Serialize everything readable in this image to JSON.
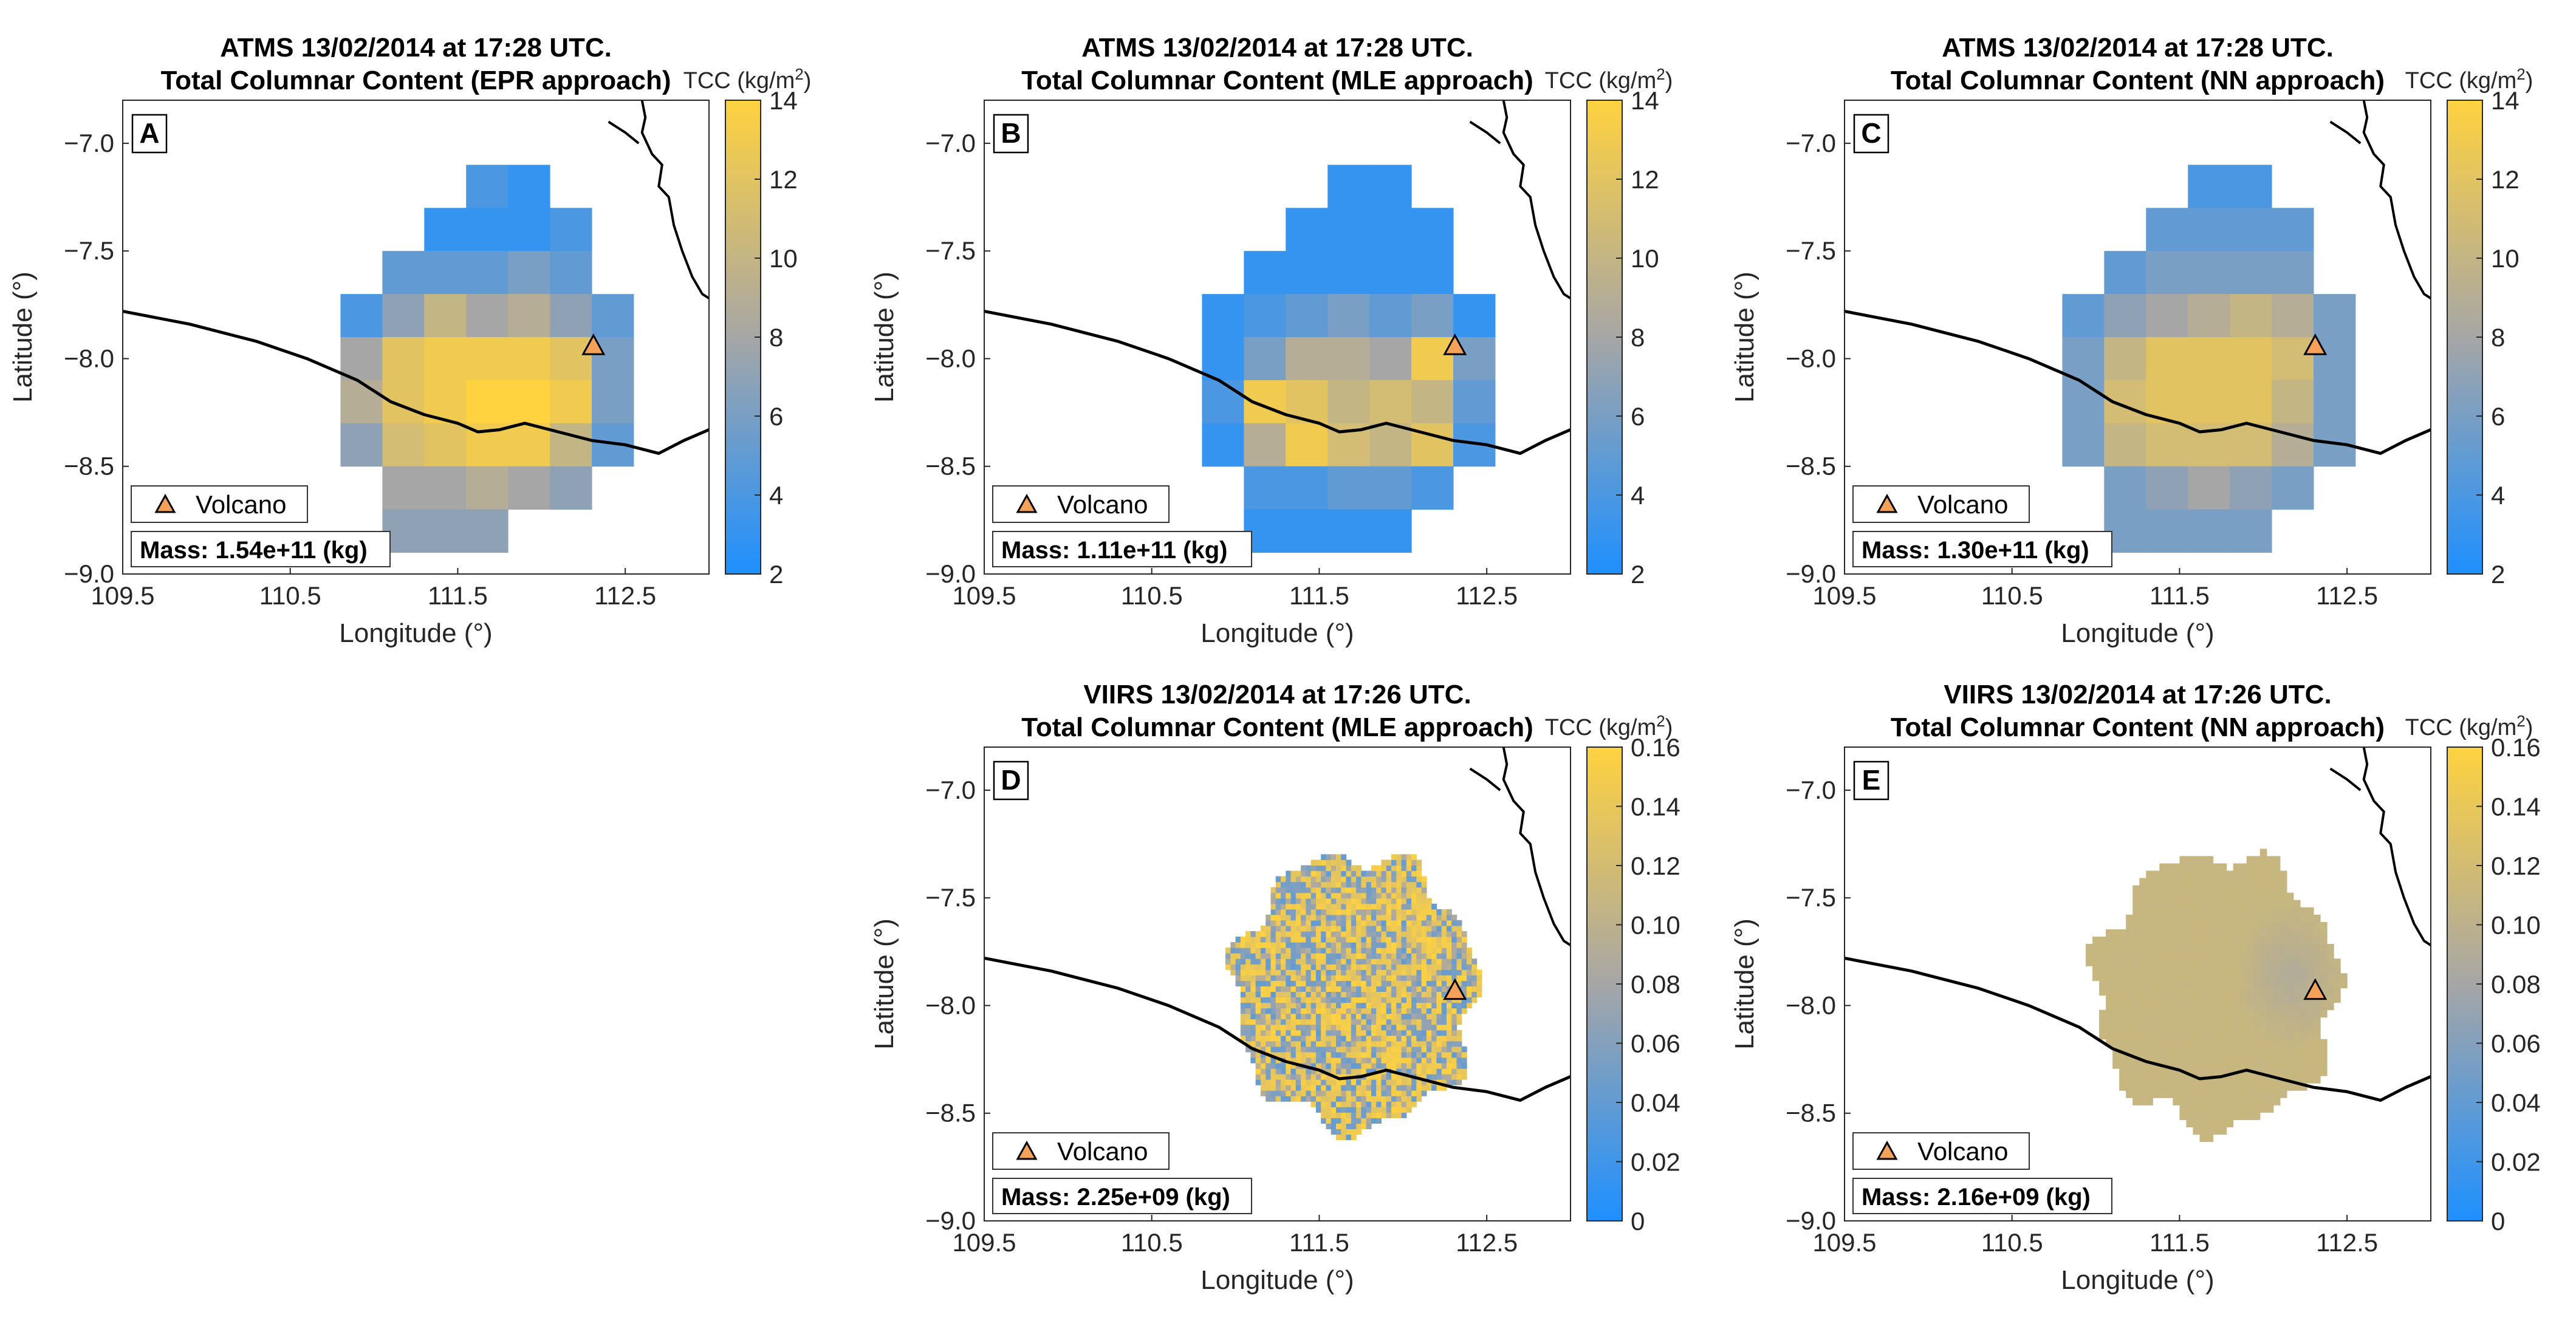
{
  "colors": {
    "low": "#1E90FF",
    "mid": "#A6A6A6",
    "high": "#FFD23F",
    "coast": "#000000",
    "volcano_fill": "#F4A259"
  },
  "chart_data": [
    {
      "type": "heatmap",
      "panel": "A",
      "instrument": "ATMS",
      "title": "ATMS 13/02/2014 at 17:28 UTC.",
      "subtitle": "Total Columnar Content (EPR approach)",
      "xlabel": "Longitude (°)",
      "ylabel": "Latitude (°)",
      "xlim": [
        109.5,
        113.0
      ],
      "ylim": [
        -9.0,
        -6.8
      ],
      "xticks": [
        "109.5",
        "110.5",
        "111.5",
        "112.5"
      ],
      "yticks": [
        "-9.0",
        "-8.5",
        "-8.0",
        "-7.5",
        "-7.0"
      ],
      "colorbar": {
        "label": "TCC",
        "unit": "(kg/m",
        "unit_sup": "2",
        "unit_end": ")",
        "min": 2,
        "max": 14,
        "ticks": [
          "2",
          "4",
          "6",
          "8",
          "10",
          "12",
          "14"
        ]
      },
      "legend": "Volcano",
      "mass": "Mass: 1.54e+11 (kg)",
      "volcano": [
        112.31,
        -7.94
      ],
      "field": "pixel",
      "values": [
        [
          null,
          null,
          null,
          4,
          3,
          null,
          null
        ],
        [
          null,
          null,
          3,
          3,
          3,
          4,
          null
        ],
        [
          null,
          5,
          5,
          5,
          6,
          5,
          null
        ],
        [
          4,
          7,
          10,
          8,
          9,
          7,
          5
        ],
        [
          8,
          12,
          13,
          13,
          13,
          12,
          6
        ],
        [
          9,
          12,
          13,
          14,
          14,
          13,
          6
        ],
        [
          7,
          11,
          12,
          13,
          13,
          10,
          5
        ],
        [
          null,
          8,
          8,
          9,
          8,
          7,
          null
        ],
        [
          null,
          7,
          7,
          7,
          null,
          null,
          null
        ]
      ]
    },
    {
      "type": "heatmap",
      "panel": "B",
      "instrument": "ATMS",
      "title": "ATMS 13/02/2014 at 17:28 UTC.",
      "subtitle": "Total Columnar Content (MLE approach)",
      "xlabel": "Longitude (°)",
      "ylabel": "Latitude (°)",
      "xlim": [
        109.5,
        113.0
      ],
      "ylim": [
        -9.0,
        -6.8
      ],
      "xticks": [
        "109.5",
        "110.5",
        "111.5",
        "112.5"
      ],
      "yticks": [
        "-9.0",
        "-8.5",
        "-8.0",
        "-7.5",
        "-7.0"
      ],
      "colorbar": {
        "label": "TCC",
        "unit": "(kg/m",
        "unit_sup": "2",
        "unit_end": ")",
        "min": 2,
        "max": 14,
        "ticks": [
          "2",
          "4",
          "6",
          "8",
          "10",
          "12",
          "14"
        ]
      },
      "legend": "Volcano",
      "mass": "Mass: 1.11e+11 (kg)",
      "volcano": [
        112.31,
        -7.94
      ],
      "field": "pixel",
      "values": [
        [
          null,
          null,
          null,
          3,
          3,
          null,
          null
        ],
        [
          null,
          null,
          3,
          3,
          3,
          3,
          null
        ],
        [
          null,
          3,
          3,
          3,
          3,
          3,
          null
        ],
        [
          3,
          4,
          5,
          6,
          5,
          6,
          3
        ],
        [
          3,
          6,
          9,
          9,
          8,
          13,
          6
        ],
        [
          4,
          13,
          12,
          10,
          11,
          10,
          5
        ],
        [
          3,
          9,
          13,
          11,
          10,
          12,
          4
        ],
        [
          null,
          4,
          4,
          5,
          5,
          4,
          null
        ],
        [
          null,
          3,
          3,
          3,
          3,
          null,
          null
        ]
      ]
    },
    {
      "type": "heatmap",
      "panel": "C",
      "instrument": "ATMS",
      "title": "ATMS 13/02/2014 at 17:28 UTC.",
      "subtitle": "Total Columnar Content (NN approach)",
      "xlabel": "Longitude (°)",
      "ylabel": "Latitude (°)",
      "xlim": [
        109.5,
        113.0
      ],
      "ylim": [
        -9.0,
        -6.8
      ],
      "xticks": [
        "109.5",
        "110.5",
        "111.5",
        "112.5"
      ],
      "yticks": [
        "-9.0",
        "-8.5",
        "-8.0",
        "-7.5",
        "-7.0"
      ],
      "colorbar": {
        "label": "TCC",
        "unit": "(kg/m",
        "unit_sup": "2",
        "unit_end": ")",
        "min": 2,
        "max": 14,
        "ticks": [
          "2",
          "4",
          "6",
          "8",
          "10",
          "12",
          "14"
        ]
      },
      "legend": "Volcano",
      "mass": "Mass: 1.30e+11 (kg)",
      "volcano": [
        112.31,
        -7.94
      ],
      "field": "pixel",
      "values": [
        [
          null,
          null,
          null,
          4,
          4,
          null,
          null
        ],
        [
          null,
          null,
          5,
          5,
          5,
          5,
          null
        ],
        [
          null,
          5,
          6,
          6,
          6,
          6,
          null
        ],
        [
          5,
          7,
          8,
          9,
          10,
          9,
          6
        ],
        [
          6,
          10,
          12,
          12,
          12,
          11,
          6
        ],
        [
          6,
          11,
          12,
          12,
          12,
          10,
          6
        ],
        [
          6,
          10,
          11,
          11,
          11,
          9,
          6
        ],
        [
          null,
          6,
          7,
          8,
          7,
          6,
          null
        ],
        [
          null,
          6,
          6,
          6,
          6,
          null,
          null
        ]
      ]
    },
    {
      "type": "heatmap",
      "panel": "D",
      "instrument": "VIIRS",
      "title": "VIIRS 13/02/2014 at 17:26 UTC.",
      "subtitle": "Total Columnar Content (MLE approach)",
      "xlabel": "Longitude (°)",
      "ylabel": "Latitude (°)",
      "xlim": [
        109.5,
        113.0
      ],
      "ylim": [
        -9.0,
        -6.8
      ],
      "xticks": [
        "109.5",
        "110.5",
        "111.5",
        "112.5"
      ],
      "yticks": [
        "-9.0",
        "-8.5",
        "-8.0",
        "-7.5",
        "-7.0"
      ],
      "colorbar": {
        "label": "TCC",
        "unit": "(kg/m",
        "unit_sup": "2",
        "unit_end": ")",
        "min": 0,
        "max": 0.16,
        "ticks": [
          "0",
          "0.02",
          "0.04",
          "0.06",
          "0.08",
          "0.10",
          "0.12",
          "0.14",
          "0.16"
        ]
      },
      "legend": "Volcano",
      "mass": "Mass: 2.25e+09 (kg)",
      "volcano": [
        112.31,
        -7.93
      ],
      "field": "noisy",
      "value_range": [
        0.04,
        0.16
      ]
    },
    {
      "type": "heatmap",
      "panel": "E",
      "instrument": "VIIRS",
      "title": "VIIRS 13/02/2014 at 17:26 UTC.",
      "subtitle": "Total Columnar Content (NN approach)",
      "xlabel": "Longitude (°)",
      "ylabel": "Latitude (°)",
      "xlim": [
        109.5,
        113.0
      ],
      "ylim": [
        -9.0,
        -6.8
      ],
      "xticks": [
        "109.5",
        "110.5",
        "111.5",
        "112.5"
      ],
      "yticks": [
        "-9.0",
        "-8.5",
        "-8.0",
        "-7.5",
        "-7.0"
      ],
      "colorbar": {
        "label": "TCC",
        "unit": "(kg/m",
        "unit_sup": "2",
        "unit_end": ")",
        "min": 0,
        "max": 0.16,
        "ticks": [
          "0",
          "0.02",
          "0.04",
          "0.06",
          "0.08",
          "0.10",
          "0.12",
          "0.14",
          "0.16"
        ]
      },
      "legend": "Volcano",
      "mass": "Mass: 2.16e+09 (kg)",
      "volcano": [
        112.31,
        -7.93
      ],
      "field": "smooth",
      "value_range": [
        0.08,
        0.11
      ]
    }
  ]
}
